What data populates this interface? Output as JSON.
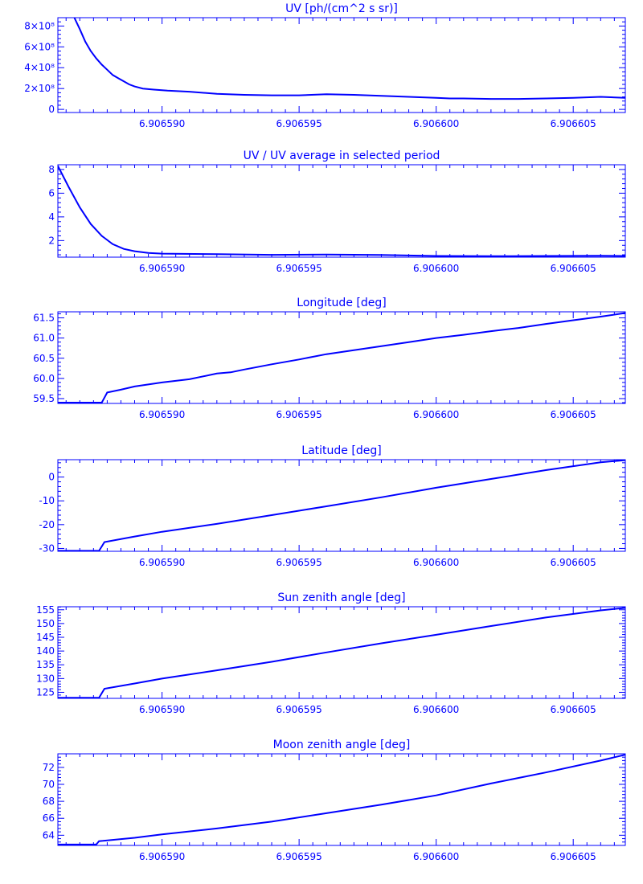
{
  "color": "#0000ff",
  "x_tick_labels": [
    "6.906590",
    "6.906595",
    "6.906600",
    "6.906605"
  ],
  "chart_data": [
    {
      "type": "line",
      "title": "UV [ph/(cm^2 s sr)]",
      "xlim": [
        6.9065862,
        6.9066069
      ],
      "x_ticks": [
        6.90659,
        6.906595,
        6.9066,
        6.906605
      ],
      "ylim": [
        -0.3,
        8.8
      ],
      "y_ticks": [
        0,
        2,
        4,
        6,
        8
      ],
      "y_tick_labels": [
        "0",
        "2×10⁸",
        "4×10⁸",
        "6×10⁸",
        "8×10⁸"
      ],
      "series": [
        {
          "x": [
            6.9065868,
            6.906587,
            6.9065872,
            6.9065874,
            6.9065876,
            6.9065878,
            6.906588,
            6.9065882,
            6.9065884,
            6.9065886,
            6.9065888,
            6.906589,
            6.9065893,
            6.9065897,
            6.9065902,
            6.906591,
            6.906592,
            6.906593,
            6.906594,
            6.906595,
            6.906596,
            6.906597,
            6.906598,
            6.906599,
            6.9066,
            6.9066005,
            6.906601,
            6.906602,
            6.906603,
            6.906604,
            6.906605,
            6.906606,
            6.9066069
          ],
          "y": [
            8.8,
            7.7,
            6.5,
            5.6,
            4.9,
            4.3,
            3.8,
            3.3,
            3.0,
            2.7,
            2.4,
            2.2,
            2.0,
            1.9,
            1.8,
            1.7,
            1.5,
            1.4,
            1.35,
            1.35,
            1.45,
            1.4,
            1.3,
            1.2,
            1.1,
            1.05,
            1.05,
            1.0,
            1.0,
            1.05,
            1.1,
            1.2,
            1.1
          ]
        }
      ]
    },
    {
      "type": "line",
      "title": "UV / UV average in selected period",
      "xlim": [
        6.9065862,
        6.9066069
      ],
      "x_ticks": [
        6.90659,
        6.906595,
        6.9066,
        6.906605
      ],
      "ylim": [
        0.6,
        8.4
      ],
      "y_ticks": [
        2,
        4,
        6,
        8
      ],
      "y_tick_labels": [
        "2",
        "4",
        "6",
        "8"
      ],
      "series": [
        {
          "x": [
            6.9065862,
            6.9065866,
            6.906587,
            6.9065874,
            6.9065878,
            6.9065882,
            6.9065886,
            6.906589,
            6.9065895,
            6.90659,
            6.906592,
            6.906594,
            6.906596,
            6.906598,
            6.9066,
            6.906602,
            6.906604,
            6.906606,
            6.9066069
          ],
          "y": [
            8.3,
            6.5,
            4.8,
            3.4,
            2.4,
            1.7,
            1.3,
            1.1,
            0.95,
            0.9,
            0.85,
            0.8,
            0.82,
            0.78,
            0.7,
            0.68,
            0.7,
            0.72,
            0.7
          ]
        }
      ]
    },
    {
      "type": "line",
      "title": "Longitude [deg]",
      "xlim": [
        6.9065862,
        6.9066069
      ],
      "x_ticks": [
        6.90659,
        6.906595,
        6.9066,
        6.906605
      ],
      "ylim": [
        59.38,
        61.65
      ],
      "y_ticks": [
        59.5,
        60.0,
        60.5,
        61.0,
        61.5
      ],
      "y_tick_labels": [
        "59.5",
        "60.0",
        "60.5",
        "61.0",
        "61.5"
      ],
      "series": [
        {
          "x": [
            6.9065862,
            6.9065878,
            6.906588,
            6.9065885,
            6.906589,
            6.90659,
            6.906591,
            6.906592,
            6.9065925,
            6.906593,
            6.906594,
            6.906595,
            6.906596,
            6.906597,
            6.906598,
            6.906599,
            6.9066,
            6.906601,
            6.906602,
            6.906603,
            6.906604,
            6.906605,
            6.906606,
            6.9066069
          ],
          "y": [
            59.4,
            59.4,
            59.65,
            59.72,
            59.8,
            59.9,
            59.98,
            60.12,
            60.15,
            60.22,
            60.35,
            60.47,
            60.6,
            60.7,
            60.8,
            60.9,
            61.0,
            61.08,
            61.17,
            61.25,
            61.35,
            61.44,
            61.53,
            61.62
          ]
        }
      ]
    },
    {
      "type": "line",
      "title": "Latitude [deg]",
      "xlim": [
        6.9065862,
        6.9066069
      ],
      "x_ticks": [
        6.90659,
        6.906595,
        6.9066,
        6.906605
      ],
      "ylim": [
        -31.2,
        7.3
      ],
      "y_ticks": [
        -30,
        -20,
        -10,
        0
      ],
      "y_tick_labels": [
        "-30",
        "-20",
        "-10",
        "0"
      ],
      "series": [
        {
          "x": [
            6.9065862,
            6.9065877,
            6.9065879,
            6.906589,
            6.90659,
            6.906592,
            6.906594,
            6.906596,
            6.906598,
            6.9066,
            6.906602,
            6.906604,
            6.906606,
            6.9066069
          ],
          "y": [
            -31,
            -31,
            -27.3,
            -25,
            -23,
            -19.7,
            -16,
            -12.3,
            -8.5,
            -4.5,
            -0.8,
            2.9,
            6.2,
            7.1
          ]
        }
      ]
    },
    {
      "type": "line",
      "title": "Sun zenith angle [deg]",
      "xlim": [
        6.9065862,
        6.9066069
      ],
      "x_ticks": [
        6.90659,
        6.906595,
        6.9066,
        6.906605
      ],
      "ylim": [
        122.8,
        156.1
      ],
      "y_ticks": [
        125,
        130,
        135,
        140,
        145,
        150,
        155
      ],
      "y_tick_labels": [
        "125",
        "130",
        "135",
        "140",
        "145",
        "150",
        "155"
      ],
      "series": [
        {
          "x": [
            6.9065862,
            6.9065877,
            6.9065879,
            6.906589,
            6.90659,
            6.906592,
            6.906594,
            6.906596,
            6.906598,
            6.9066,
            6.906602,
            6.906604,
            6.906606,
            6.9066069
          ],
          "y": [
            123,
            123,
            126.3,
            128.2,
            130,
            133,
            136.1,
            139.5,
            142.8,
            145.9,
            149.1,
            152.2,
            154.8,
            155.7
          ]
        }
      ]
    },
    {
      "type": "line",
      "title": "Moon zenith angle [deg]",
      "xlim": [
        6.9065862,
        6.9066069
      ],
      "x_ticks": [
        6.90659,
        6.906595,
        6.9066,
        6.906605
      ],
      "ylim": [
        62.8,
        73.6
      ],
      "y_ticks": [
        64,
        66,
        68,
        70,
        72
      ],
      "y_tick_labels": [
        "64",
        "66",
        "68",
        "70",
        "72"
      ],
      "series": [
        {
          "x": [
            6.9065862,
            6.9065876,
            6.9065877,
            6.906589,
            6.90659,
            6.906592,
            6.906594,
            6.906596,
            6.906598,
            6.9066,
            6.906602,
            6.906604,
            6.906606,
            6.9066069
          ],
          "y": [
            62.9,
            62.9,
            63.3,
            63.7,
            64.1,
            64.8,
            65.6,
            66.6,
            67.6,
            68.7,
            70.1,
            71.4,
            72.8,
            73.5
          ]
        }
      ]
    }
  ]
}
